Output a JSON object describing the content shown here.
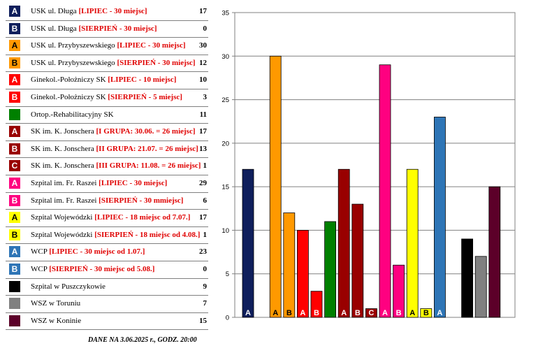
{
  "legend": [
    {
      "badge": "A",
      "color": "#0f1f5c",
      "text_color": "#ffffff",
      "name": "USK ul. Długa",
      "detail": "[LIPIEC - 30 miejsc]",
      "count": "17"
    },
    {
      "badge": "B",
      "color": "#0f1f5c",
      "text_color": "#ffffff",
      "name": "USK ul. Długa",
      "detail": "[SIERPIEŃ - 30 miejsc]",
      "count": "0"
    },
    {
      "badge": "A",
      "color": "#ff9900",
      "text_color": "#000000",
      "name": "USK ul. Przybyszewskiego",
      "detail": "[LIPIEC - 30 miejsc]",
      "count": "30"
    },
    {
      "badge": "B",
      "color": "#ff9900",
      "text_color": "#000000",
      "name": "USK ul. Przybyszewskiego",
      "detail": "[SIERPIEŃ - 30 miejsc]",
      "count": "12"
    },
    {
      "badge": "A",
      "color": "#ff0000",
      "text_color": "#ffffff",
      "name": "Ginekol.-Położniczy SK",
      "detail": "[LIPIEC - 10 miejsc]",
      "count": "10"
    },
    {
      "badge": "B",
      "color": "#ff0000",
      "text_color": "#ffffff",
      "name": "Ginekol.-Położniczy SK",
      "detail": "[SIERPIEŃ - 5 miejsc]",
      "count": "3"
    },
    {
      "badge": "",
      "color": "#008000",
      "text_color": "#ffffff",
      "name": "Ortop.-Rehabilitacyjny SK",
      "detail": "",
      "count": "11"
    },
    {
      "badge": "A",
      "color": "#990000",
      "text_color": "#ffffff",
      "name": "SK im. K. Jonschera",
      "detail": "[I GRUPA: 30.06. = 26 miejsc]",
      "count": "17"
    },
    {
      "badge": "B",
      "color": "#990000",
      "text_color": "#ffffff",
      "name": "SK im. K. Jonschera",
      "detail": "[II GRUPA: 21.07. = 26 miejsc]",
      "count": "13"
    },
    {
      "badge": "C",
      "color": "#990000",
      "text_color": "#ffffff",
      "name": "SK im. K. Jonschera",
      "detail": "[III GRUPA: 11.08. = 26 miejsc]",
      "count": "1"
    },
    {
      "badge": "A",
      "color": "#ff0080",
      "text_color": "#ffffff",
      "name": "Szpital im. Fr. Raszei",
      "detail": "[LIPIEC - 30 miejsc]",
      "count": "29"
    },
    {
      "badge": "B",
      "color": "#ff0080",
      "text_color": "#ffffff",
      "name": "Szpital im. Fr. Raszei",
      "detail": "[SIERPIEŃ - 30 mmiejsc]",
      "count": "6"
    },
    {
      "badge": "A",
      "color": "#ffff00",
      "text_color": "#000000",
      "name": "Szpital Wojewódzki",
      "detail": "[LIPIEC - 18 miejsc od 7.07.]",
      "count": "17"
    },
    {
      "badge": "B",
      "color": "#ffff00",
      "text_color": "#000000",
      "name": "Szpital Wojewódzki",
      "detail": "[SIERPIEŃ - 18 miejsc od 4.08.]",
      "count": "1"
    },
    {
      "badge": "A",
      "color": "#2e75b6",
      "text_color": "#ffffff",
      "name": "WCP",
      "detail": "[LIPIEC - 30 miejsc od 1.07.]",
      "count": "23"
    },
    {
      "badge": "B",
      "color": "#2e75b6",
      "text_color": "#ffffff",
      "name": "WCP",
      "detail": "[SIERPIEŃ - 30 miejsc od 5.08.]",
      "count": "0"
    },
    {
      "badge": "",
      "color": "#000000",
      "text_color": "#ffffff",
      "name": "Szpital w Puszczykowie",
      "detail": "",
      "count": "9"
    },
    {
      "badge": "",
      "color": "#808080",
      "text_color": "#ffffff",
      "name": "WSZ w Toruniu",
      "detail": "",
      "count": "7"
    },
    {
      "badge": "",
      "color": "#5c0029",
      "text_color": "#ffffff",
      "name": "WSZ w Koninie",
      "detail": "",
      "count": "15"
    }
  ],
  "footnote": "DANE NA 3.06.2025 r., GODZ. 20:00",
  "chart_data": {
    "type": "bar",
    "ylim": [
      0,
      35
    ],
    "yticks": [
      0,
      5,
      10,
      15,
      20,
      25,
      30,
      35
    ],
    "grid": true,
    "bars": [
      {
        "slot": 0,
        "value": 17,
        "label": "A",
        "color": "#0f1f5c"
      },
      {
        "slot": 2,
        "value": 30,
        "label": "A",
        "color": "#ff9900"
      },
      {
        "slot": 3,
        "value": 12,
        "label": "B",
        "color": "#ff9900"
      },
      {
        "slot": 4,
        "value": 10,
        "label": "A",
        "color": "#ff0000"
      },
      {
        "slot": 5,
        "value": 3,
        "label": "B",
        "color": "#ff0000"
      },
      {
        "slot": 6,
        "value": 11,
        "label": "",
        "color": "#008000"
      },
      {
        "slot": 7,
        "value": 17,
        "label": "A",
        "color": "#990000"
      },
      {
        "slot": 8,
        "value": 13,
        "label": "B",
        "color": "#990000"
      },
      {
        "slot": 9,
        "value": 1,
        "label": "C",
        "color": "#990000"
      },
      {
        "slot": 10,
        "value": 29,
        "label": "A",
        "color": "#ff0080"
      },
      {
        "slot": 11,
        "value": 6,
        "label": "B",
        "color": "#ff0080"
      },
      {
        "slot": 12,
        "value": 17,
        "label": "A",
        "color": "#ffff00"
      },
      {
        "slot": 13,
        "value": 1,
        "label": "B",
        "color": "#ffff00"
      },
      {
        "slot": 14,
        "value": 23,
        "label": "A",
        "color": "#2e75b6"
      },
      {
        "slot": 16,
        "value": 9,
        "label": "",
        "color": "#000000"
      },
      {
        "slot": 17,
        "value": 7,
        "label": "",
        "color": "#808080"
      },
      {
        "slot": 18,
        "value": 15,
        "label": "",
        "color": "#5c0029"
      }
    ]
  }
}
